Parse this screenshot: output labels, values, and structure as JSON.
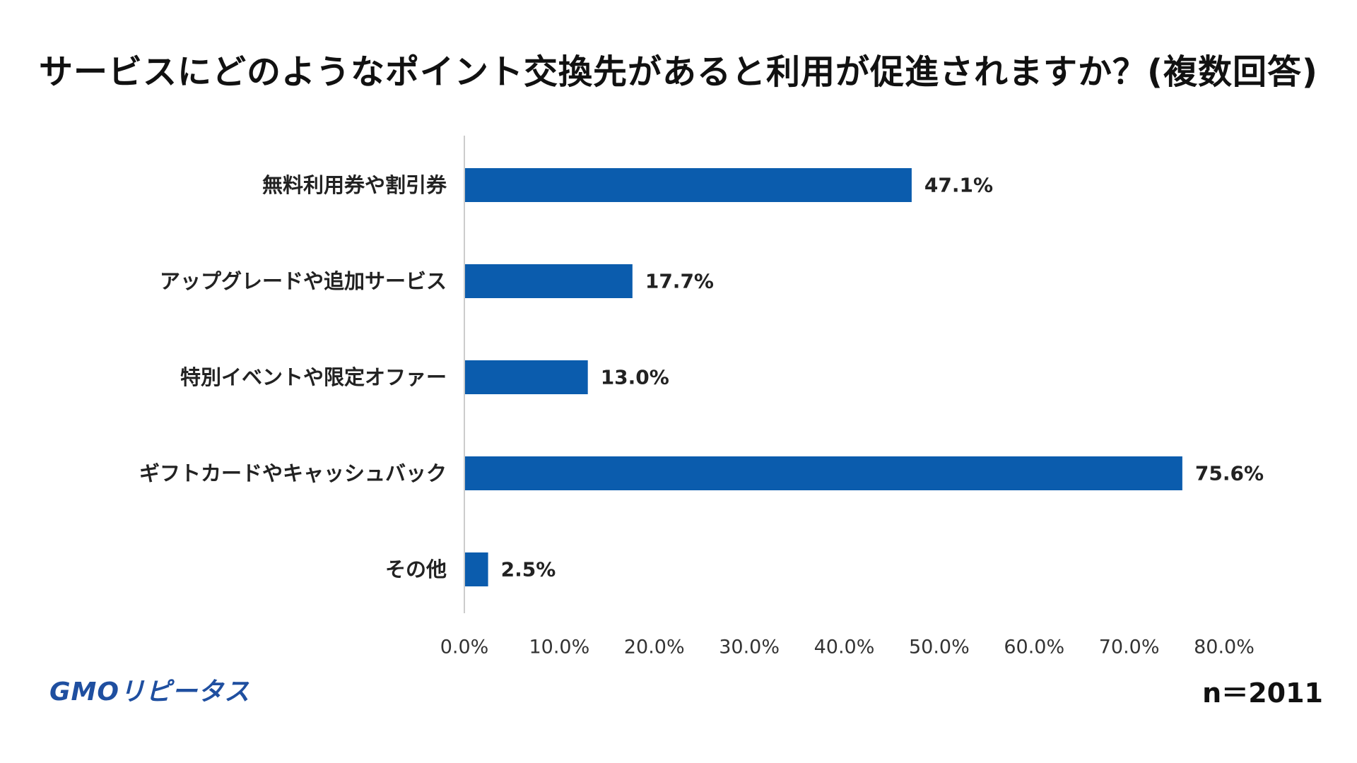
{
  "chart_data": {
    "type": "bar",
    "orientation": "horizontal",
    "title": "サービスにどのようなポイント交換先があると利用が促進されますか？(複数回答)",
    "categories": [
      "無料利用券や割引券",
      "アップグレードや追加サービス",
      "特別イベントや限定オファー",
      "ギフトカードやキャッシュバック",
      "その他"
    ],
    "values": [
      47.1,
      17.7,
      13.0,
      75.6,
      2.5
    ],
    "value_labels": [
      "47.1%",
      "17.7%",
      "13.0%",
      "75.6%",
      "2.5%"
    ],
    "xlim": [
      0,
      80
    ],
    "xticks": [
      "0.0%",
      "10.0%",
      "20.0%",
      "30.0%",
      "40.0%",
      "50.0%",
      "60.0%",
      "70.0%",
      "80.0%"
    ],
    "grid": false,
    "bar_color": "#0b5cad",
    "axis_color": "#cccccc"
  },
  "footer": {
    "logo_text": "GMOリピータス",
    "sample_size": "n＝2011"
  }
}
